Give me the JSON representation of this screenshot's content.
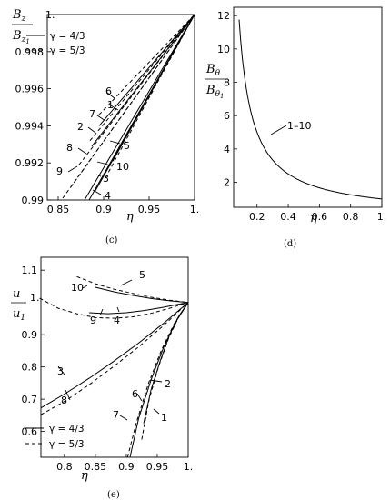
{
  "panels": {
    "c": {
      "caption": "(c)",
      "ylabel_num": "B",
      "ylabel_num_sub": "z",
      "ylabel_den": "B",
      "ylabel_den_sub": "z",
      "ylabel_den_subsub": "1",
      "ylabel_suffix": "1.",
      "xlabel": "η",
      "x_ticks": [
        "0.85",
        "0.9",
        "0.95",
        "1."
      ],
      "y_ticks": [
        "0.998",
        "0.996",
        "0.994",
        "0.992",
        "0.99"
      ],
      "legend": [
        {
          "label": "γ = 4/3",
          "style": "solid"
        },
        {
          "label": "γ = 5/3",
          "style": "dashed"
        }
      ]
    },
    "d": {
      "caption": "(d)",
      "ylabel_num": "B",
      "ylabel_num_sub": "θ",
      "ylabel_den": "B",
      "ylabel_den_sub": "θ",
      "ylabel_den_subsub": "1",
      "xlabel": "η",
      "x_ticks": [
        "0.2",
        "0.4",
        "0.6",
        "0.8",
        "1."
      ],
      "y_ticks": [
        "12",
        "10",
        "8",
        "6",
        "4",
        "2"
      ],
      "curve_label": "1–10"
    },
    "e": {
      "caption": "(e)",
      "ylabel_num": "u",
      "ylabel_den": "u",
      "ylabel_den_sub": "1",
      "ylabel_suffix": "1.",
      "xlabel": "η",
      "x_ticks": [
        "0.8",
        "0.85",
        "0.9",
        "0.95",
        "1."
      ],
      "y_ticks": [
        "1.1",
        "0.9",
        "0.8",
        "0.7",
        "0.6"
      ],
      "legend": [
        {
          "label": "γ = 4/3",
          "style": "solid"
        },
        {
          "label": "γ = 5/3",
          "style": "dashed"
        }
      ]
    }
  },
  "chart_data": [
    {
      "type": "line",
      "panel": "c",
      "xlim": [
        0.838,
        1.0
      ],
      "ylim": [
        0.99,
        1.0
      ],
      "lines": [
        {
          "label": "6",
          "style": "dashed",
          "x": [
            0.895,
            1.0
          ],
          "y": [
            0.9946,
            1.0
          ]
        },
        {
          "label": "1",
          "style": "solid",
          "x": [
            0.895,
            1.0
          ],
          "y": [
            0.994,
            1.0
          ]
        },
        {
          "label": "7",
          "style": "dashed",
          "x": [
            0.885,
            1.0
          ],
          "y": [
            0.9932,
            1.0
          ]
        },
        {
          "label": "",
          "style": "solid",
          "x": [
            0.887,
            1.0
          ],
          "y": [
            0.9929,
            1.0
          ]
        },
        {
          "label": "2",
          "style": "dashed",
          "x": [
            0.873,
            1.0
          ],
          "y": [
            0.9919,
            1.0
          ]
        },
        {
          "label": "5",
          "style": "solid",
          "x": [
            0.91,
            1.0
          ],
          "y": [
            0.9921,
            1.0
          ]
        },
        {
          "label": "8",
          "style": "dashed",
          "x": [
            0.864,
            1.0
          ],
          "y": [
            0.9907,
            1.0
          ]
        },
        {
          "label": "10",
          "style": "dashed",
          "x": [
            0.902,
            1.0
          ],
          "y": [
            0.9912,
            1.0
          ]
        },
        {
          "label": "9",
          "style": "dashed",
          "x": [
            0.855,
            1.0
          ],
          "y": [
            0.9901,
            1.0
          ]
        },
        {
          "label": "3",
          "style": "solid",
          "x": [
            0.891,
            1.0
          ],
          "y": [
            0.9905,
            1.0
          ]
        },
        {
          "label": "",
          "style": "solid",
          "x": [
            0.884,
            1.0
          ],
          "y": [
            0.99,
            1.0
          ]
        },
        {
          "label": "4",
          "style": "solid",
          "x": [
            0.879,
            1.0
          ],
          "y": [
            0.99,
            1.0
          ]
        }
      ]
    },
    {
      "type": "line",
      "panel": "d",
      "xlim": [
        0.05,
        1.0
      ],
      "ylim": [
        0.5,
        12.5
      ],
      "series": [
        {
          "name": "1–10",
          "style": "solid",
          "x": [
            0.085,
            0.1,
            0.12,
            0.15,
            0.2,
            0.25,
            0.3,
            0.4,
            0.5,
            0.6,
            0.7,
            0.8,
            0.9,
            1.0
          ],
          "y": [
            11.76,
            10.0,
            8.33,
            6.67,
            5.0,
            4.0,
            3.33,
            2.5,
            2.0,
            1.67,
            1.43,
            1.25,
            1.11,
            1.0
          ]
        }
      ]
    },
    {
      "type": "line",
      "panel": "e",
      "xlim": [
        0.762,
        1.0
      ],
      "ylim": [
        0.52,
        1.14
      ],
      "lines": [
        {
          "label": "10",
          "style": "dashed",
          "x": [
            0.82,
            0.85,
            0.88,
            0.91,
            0.94,
            0.97,
            1.0
          ],
          "y": [
            1.08,
            1.058,
            1.041,
            1.028,
            1.016,
            1.007,
            1.0
          ]
        },
        {
          "label": "5",
          "style": "solid",
          "x": [
            0.85,
            0.88,
            0.91,
            0.94,
            0.97,
            1.0
          ],
          "y": [
            1.047,
            1.033,
            1.022,
            1.012,
            1.005,
            1.0
          ]
        },
        {
          "label": "9",
          "style": "dashed",
          "x": [
            0.76,
            0.79,
            0.82,
            0.85,
            0.88,
            0.91,
            0.94,
            0.97,
            1.0
          ],
          "y": [
            1.013,
            0.982,
            0.965,
            0.953,
            0.951,
            0.955,
            0.966,
            0.982,
            1.0
          ]
        },
        {
          "label": "4",
          "style": "solid",
          "x": [
            0.84,
            0.87,
            0.9,
            0.93,
            0.96,
            0.98,
            1.0
          ],
          "y": [
            0.968,
            0.965,
            0.968,
            0.975,
            0.985,
            0.993,
            1.0
          ]
        },
        {
          "label": "3",
          "style": "solid",
          "x": [
            0.762,
            0.8,
            0.84,
            0.88,
            0.92,
            0.96,
            1.0
          ],
          "y": [
            0.673,
            0.716,
            0.765,
            0.818,
            0.874,
            0.935,
            1.0
          ]
        },
        {
          "label": "8",
          "style": "dashed",
          "x": [
            0.762,
            0.8,
            0.84,
            0.88,
            0.92,
            0.96,
            1.0
          ],
          "y": [
            0.652,
            0.693,
            0.745,
            0.802,
            0.862,
            0.928,
            1.0
          ]
        },
        {
          "label": "2",
          "style": "solid",
          "x": [
            0.928,
            0.94,
            0.955,
            0.97,
            0.985,
            1.0
          ],
          "y": [
            0.625,
            0.73,
            0.82,
            0.9,
            0.958,
            1.0
          ]
        },
        {
          "label": "1",
          "style": "dashed",
          "x": [
            0.925,
            0.937,
            0.952,
            0.968,
            0.984,
            1.0
          ],
          "y": [
            0.575,
            0.7,
            0.8,
            0.887,
            0.952,
            1.0
          ]
        },
        {
          "label": "6",
          "style": "solid",
          "x": [
            0.906,
            0.92,
            0.94,
            0.96,
            0.98,
            1.0
          ],
          "y": [
            0.52,
            0.64,
            0.76,
            0.86,
            0.94,
            1.0
          ]
        },
        {
          "label": "7",
          "style": "dashed",
          "x": [
            0.902,
            0.916,
            0.936,
            0.957,
            0.978,
            1.0
          ],
          "y": [
            0.52,
            0.625,
            0.75,
            0.853,
            0.936,
            1.0
          ]
        }
      ]
    }
  ]
}
